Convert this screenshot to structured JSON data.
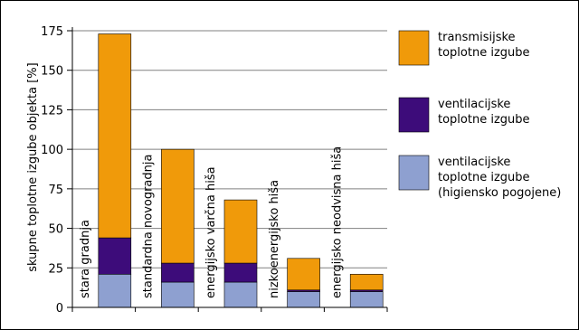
{
  "chart_data": {
    "type": "bar",
    "stacked": true,
    "ylabel": "skupne toplotne izgube objekta [%]",
    "ylim": [
      0,
      175
    ],
    "yticks": [
      0,
      25,
      50,
      75,
      100,
      125,
      150,
      175
    ],
    "grid": "horizontal",
    "legend_position": "right",
    "categories": [
      "stara gradnja",
      "standardna novogradnja",
      "energijsko varčna hiša",
      "nizkoenergijsko hiša",
      "energijsko neodvisna hiša"
    ],
    "series": [
      {
        "name": "ventilacijske toplotne izgube (higiensko pogojene)",
        "name_lines": [
          "ventilacijske",
          "toplotne izgube",
          "(higiensko pogojene)"
        ],
        "color": "#8EA0D0",
        "values": [
          21,
          16,
          16,
          10,
          10
        ]
      },
      {
        "name": "ventilacijske toplotne izgube",
        "name_lines": [
          "ventilacijske",
          "toplotne izgube"
        ],
        "color": "#3D0C7A",
        "values": [
          23,
          12,
          12,
          1,
          1
        ]
      },
      {
        "name": "transmisijske toplotne izgube",
        "name_lines": [
          "transmisijske",
          "toplotne izgube"
        ],
        "color": "#F09A0A",
        "values": [
          129,
          72,
          40,
          20,
          10
        ]
      }
    ]
  }
}
